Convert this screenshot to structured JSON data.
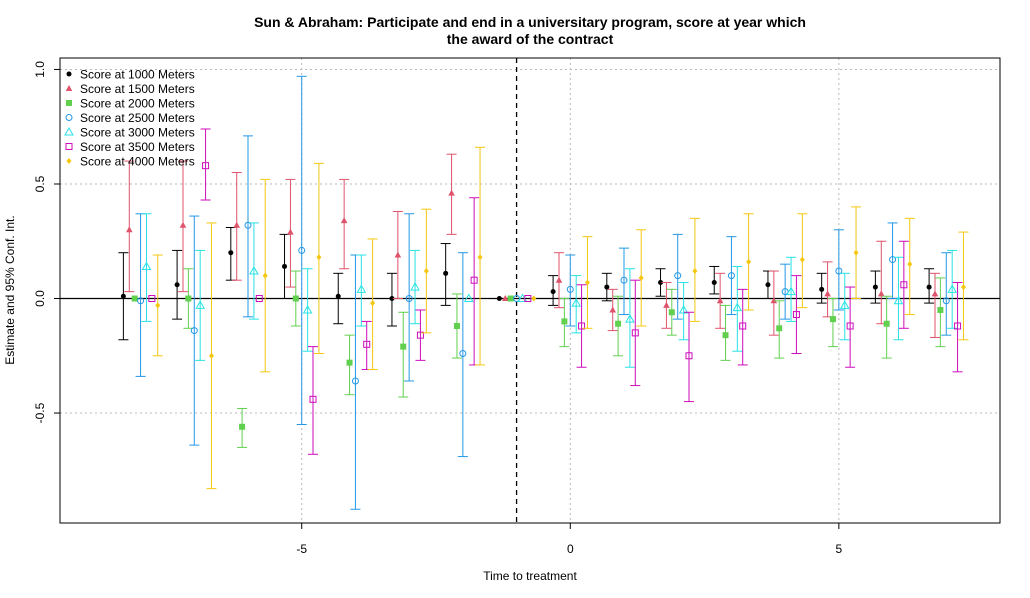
{
  "chart_data": {
    "type": "scatter",
    "title": [
      "Sun & Abraham: Participate and end in a universitary program, score at year which",
      "the award of the contract"
    ],
    "xlabel": "Time to treatment",
    "ylabel": "Estimate and 95% Conf. Int.",
    "xlim": [
      -9.5,
      8.0
    ],
    "ylim": [
      -0.98,
      1.05
    ],
    "xticks": [
      -5,
      0,
      5
    ],
    "xtick_labels": [
      "-5",
      "0",
      "5"
    ],
    "yticks": [
      -0.5,
      0.0,
      0.5,
      1.0
    ],
    "ytick_labels": [
      "-0.5",
      "0.0",
      "0.5",
      "1.0"
    ],
    "grid": true,
    "zero_line": 0,
    "reference_vline": -1,
    "legend_position": "top-left",
    "series": [
      {
        "name": "Score at 1000 Meters",
        "color": "#000000",
        "marker": "filled-circle",
        "offset": -0.32,
        "points": [
          [
            -8,
            0.01,
            -0.18,
            0.2
          ],
          [
            -7,
            0.06,
            -0.09,
            0.21
          ],
          [
            -6,
            0.2,
            0.08,
            0.31
          ],
          [
            -5,
            0.14,
            0.0,
            0.28
          ],
          [
            -4,
            0.01,
            -0.11,
            0.11
          ],
          [
            -3,
            0.0,
            -0.12,
            0.11
          ],
          [
            -2,
            0.11,
            -0.03,
            0.24
          ],
          [
            -1,
            0.0,
            0.0,
            0.0
          ],
          [
            0,
            0.03,
            -0.03,
            0.1
          ],
          [
            1,
            0.05,
            -0.01,
            0.11
          ],
          [
            2,
            0.07,
            0.01,
            0.13
          ],
          [
            3,
            0.07,
            0.02,
            0.14
          ],
          [
            4,
            0.06,
            0.0,
            0.12
          ],
          [
            5,
            0.04,
            -0.02,
            0.11
          ],
          [
            6,
            0.05,
            -0.02,
            0.12
          ],
          [
            7,
            0.05,
            -0.02,
            0.13
          ]
        ]
      },
      {
        "name": "Score at 1500 Meters",
        "color": "#DF536B",
        "marker": "filled-triangle",
        "offset": -0.21,
        "points": [
          [
            -8,
            0.3,
            0.03,
            0.6
          ],
          [
            -7,
            0.32,
            0.03,
            0.6
          ],
          [
            -6,
            0.32,
            0.08,
            0.55
          ],
          [
            -5,
            0.29,
            0.05,
            0.52
          ],
          [
            -4,
            0.34,
            0.13,
            0.52
          ],
          [
            -3,
            0.19,
            0.0,
            0.38
          ],
          [
            -2,
            0.46,
            0.28,
            0.63
          ],
          [
            -1,
            0.0,
            0.0,
            0.0
          ],
          [
            0,
            0.08,
            -0.04,
            0.2
          ],
          [
            1,
            -0.05,
            -0.14,
            0.04
          ],
          [
            2,
            -0.03,
            -0.13,
            0.07
          ],
          [
            3,
            -0.01,
            -0.13,
            0.11
          ],
          [
            4,
            -0.01,
            -0.16,
            0.12
          ],
          [
            5,
            0.02,
            -0.08,
            0.16
          ],
          [
            6,
            0.02,
            -0.11,
            0.25
          ],
          [
            7,
            0.02,
            -0.17,
            0.11
          ]
        ]
      },
      {
        "name": "Score at 2000 Meters",
        "color": "#61D04F",
        "marker": "filled-square",
        "offset": -0.11,
        "points": [
          [
            -8,
            0.0,
            0.0,
            0.0
          ],
          [
            -7,
            0.0,
            -0.13,
            0.13
          ],
          [
            -6,
            -0.56,
            -0.65,
            -0.48
          ],
          [
            -5,
            0.0,
            -0.12,
            0.12
          ],
          [
            -4,
            -0.28,
            -0.42,
            -0.16
          ],
          [
            -3,
            -0.21,
            -0.43,
            -0.06
          ],
          [
            -2,
            -0.12,
            -0.26,
            0.02
          ],
          [
            -1,
            0.0,
            0.0,
            0.0
          ],
          [
            0,
            -0.1,
            -0.21,
            0.0
          ],
          [
            1,
            -0.11,
            -0.25,
            0.01
          ],
          [
            2,
            -0.06,
            -0.16,
            0.04
          ],
          [
            3,
            -0.16,
            -0.27,
            -0.03
          ],
          [
            4,
            -0.13,
            -0.26,
            -0.01
          ],
          [
            5,
            -0.09,
            -0.21,
            0.0
          ],
          [
            6,
            -0.11,
            -0.26,
            0.01
          ],
          [
            7,
            -0.05,
            -0.21,
            0.09
          ]
        ]
      },
      {
        "name": "Score at 2500 Meters",
        "color": "#2297E6",
        "marker": "open-circle",
        "offset": 0.0,
        "points": [
          [
            -8,
            -0.01,
            -0.34,
            0.37
          ],
          [
            -7,
            -0.14,
            -0.64,
            0.36
          ],
          [
            -6,
            0.32,
            -0.08,
            0.71
          ],
          [
            -5,
            0.21,
            -0.55,
            0.97
          ],
          [
            -4,
            -0.36,
            -0.92,
            0.19
          ],
          [
            -3,
            0.0,
            -0.36,
            0.37
          ],
          [
            -2,
            -0.24,
            -0.69,
            0.2
          ],
          [
            -1,
            0.0,
            0.0,
            0.0
          ],
          [
            0,
            0.04,
            -0.12,
            0.19
          ],
          [
            1,
            0.08,
            -0.07,
            0.22
          ],
          [
            2,
            0.1,
            -0.09,
            0.28
          ],
          [
            3,
            0.1,
            -0.07,
            0.27
          ],
          [
            4,
            0.03,
            -0.09,
            0.15
          ],
          [
            5,
            0.12,
            -0.05,
            0.3
          ],
          [
            6,
            0.17,
            0.0,
            0.33
          ],
          [
            7,
            -0.01,
            -0.16,
            0.2
          ]
        ]
      },
      {
        "name": "Score at 3000 Meters",
        "color": "#28E2E5",
        "marker": "open-triangle",
        "offset": 0.11,
        "points": [
          [
            -8,
            0.14,
            -0.1,
            0.37
          ],
          [
            -7,
            -0.03,
            -0.27,
            0.21
          ],
          [
            -6,
            0.12,
            -0.09,
            0.33
          ],
          [
            -5,
            -0.05,
            -0.23,
            0.13
          ],
          [
            -4,
            0.04,
            -0.12,
            0.19
          ],
          [
            -3,
            0.05,
            -0.11,
            0.21
          ],
          [
            -2,
            0.0,
            0.0,
            0.0
          ],
          [
            -1,
            0.0,
            0.0,
            0.0
          ],
          [
            0,
            -0.02,
            -0.15,
            0.1
          ],
          [
            1,
            -0.09,
            -0.3,
            0.13
          ],
          [
            2,
            -0.05,
            -0.18,
            0.07
          ],
          [
            3,
            -0.04,
            -0.23,
            0.14
          ],
          [
            4,
            0.03,
            -0.1,
            0.18
          ],
          [
            5,
            -0.03,
            -0.18,
            0.11
          ],
          [
            6,
            -0.01,
            -0.18,
            0.18
          ],
          [
            7,
            0.04,
            -0.13,
            0.21
          ]
        ]
      },
      {
        "name": "Score at 3500 Meters",
        "color": "#CD0BBC",
        "marker": "open-square",
        "offset": 0.21,
        "points": [
          [
            -8,
            0.0,
            0.0,
            0.0
          ],
          [
            -7,
            0.58,
            0.43,
            0.74
          ],
          [
            -6,
            0.0,
            0.0,
            0.0
          ],
          [
            -5,
            -0.44,
            -0.68,
            -0.21
          ],
          [
            -4,
            -0.2,
            -0.31,
            -0.1
          ],
          [
            -3,
            -0.16,
            -0.27,
            -0.05
          ],
          [
            -2,
            0.08,
            -0.29,
            0.44
          ],
          [
            -1,
            0.0,
            0.0,
            0.0
          ],
          [
            0,
            -0.12,
            -0.3,
            0.06
          ],
          [
            1,
            -0.15,
            -0.38,
            0.08
          ],
          [
            2,
            -0.25,
            -0.45,
            -0.06
          ],
          [
            3,
            -0.12,
            -0.29,
            0.04
          ],
          [
            4,
            -0.07,
            -0.24,
            0.1
          ],
          [
            5,
            -0.12,
            -0.3,
            0.05
          ],
          [
            6,
            0.06,
            -0.13,
            0.25
          ],
          [
            7,
            -0.12,
            -0.32,
            0.07
          ]
        ]
      },
      {
        "name": "Score at 4000 Meters",
        "color": "#F5C710",
        "marker": "filled-diamond",
        "offset": 0.32,
        "points": [
          [
            -8,
            -0.03,
            -0.25,
            0.19
          ],
          [
            -7,
            -0.25,
            -0.83,
            0.33
          ],
          [
            -6,
            0.1,
            -0.32,
            0.52
          ],
          [
            -5,
            0.18,
            -0.24,
            0.59
          ],
          [
            -4,
            -0.02,
            -0.31,
            0.26
          ],
          [
            -3,
            0.12,
            -0.15,
            0.39
          ],
          [
            -2,
            0.18,
            -0.29,
            0.66
          ],
          [
            -1,
            0.0,
            0.0,
            0.0
          ],
          [
            0,
            0.07,
            -0.13,
            0.27
          ],
          [
            1,
            0.09,
            -0.12,
            0.3
          ],
          [
            2,
            0.12,
            -0.1,
            0.35
          ],
          [
            3,
            0.16,
            -0.05,
            0.37
          ],
          [
            4,
            0.17,
            -0.04,
            0.37
          ],
          [
            5,
            0.2,
            0.0,
            0.4
          ],
          [
            6,
            0.15,
            -0.07,
            0.35
          ],
          [
            7,
            0.05,
            -0.18,
            0.29
          ]
        ]
      }
    ]
  }
}
